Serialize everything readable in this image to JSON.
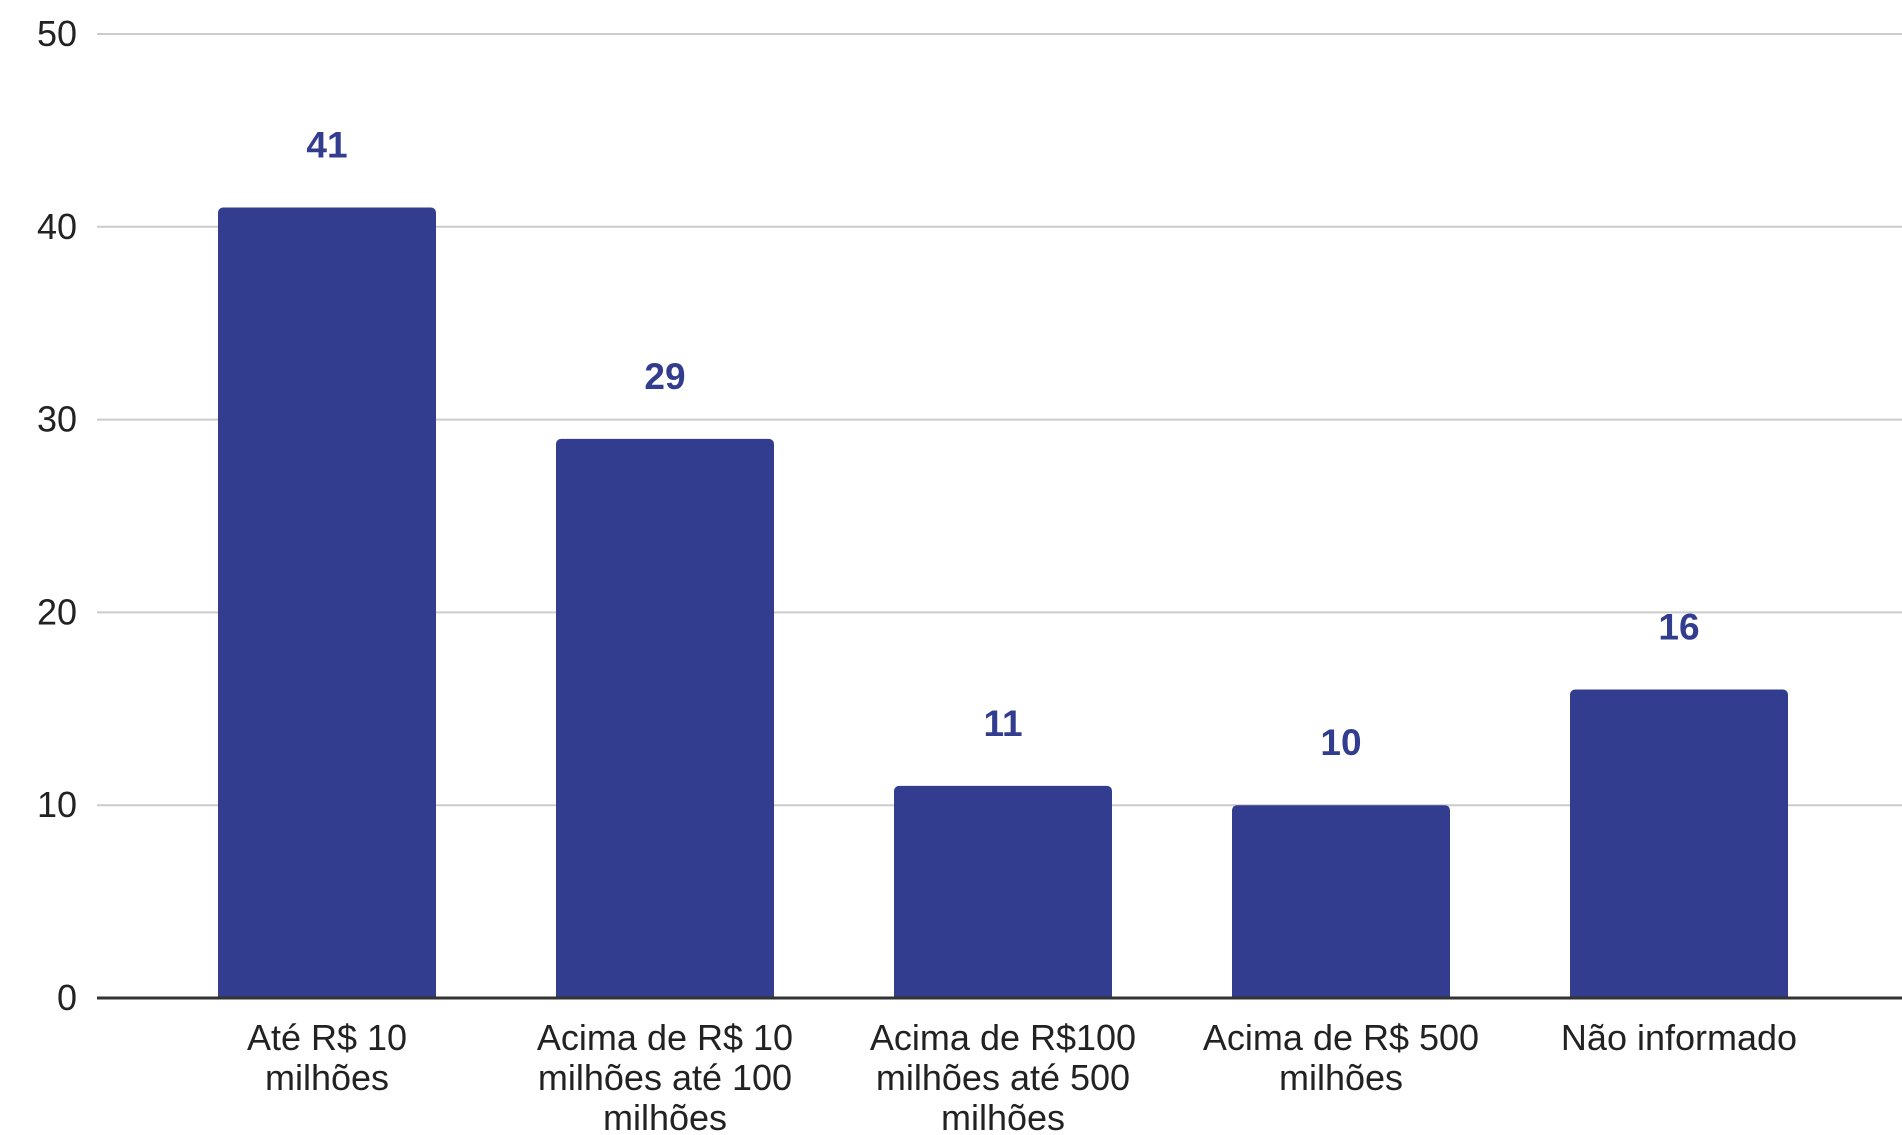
{
  "chart_data": {
    "type": "bar",
    "categories": [
      [
        "Até R$ 10",
        "milhões"
      ],
      [
        "Acima de R$ 10",
        "milhões até 100",
        "milhões"
      ],
      [
        "Acima de R$100",
        "milhões até 500",
        "milhões"
      ],
      [
        "Acima de R$ 500",
        "milhões"
      ],
      [
        "Não informado"
      ]
    ],
    "values": [
      41,
      29,
      11,
      10,
      16
    ],
    "data_labels": [
      "41",
      "29",
      "11",
      "10",
      "16"
    ],
    "y_ticks": [
      "0",
      "10",
      "20",
      "30",
      "40",
      "50"
    ],
    "ylim": [
      0,
      50
    ],
    "grid": true,
    "legend": "none",
    "bar_color": "#333d8f",
    "label_color": "#333d8f",
    "title": "",
    "xlabel": "",
    "ylabel": ""
  }
}
